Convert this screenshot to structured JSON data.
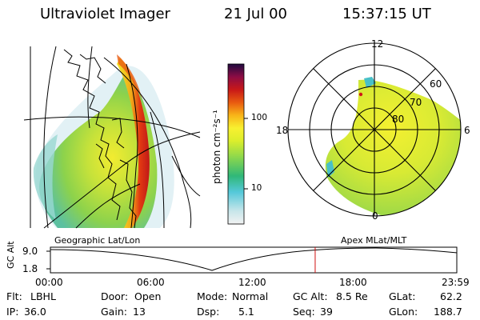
{
  "header": {
    "instrument": "Ultraviolet Imager",
    "date": "21 Jul 00",
    "time": "15:37:15 UT"
  },
  "left_panel": {
    "projection_label": "Geographic Lat/Lon"
  },
  "right_panel": {
    "projection_label": "Apex MLat/MLT",
    "mlt_labels": {
      "top": "12",
      "left": "18",
      "right": "6",
      "bottom": "0"
    },
    "lat_labels": [
      "60",
      "70",
      "80"
    ]
  },
  "colorbar": {
    "unit_label": "photon cm⁻²s⁻¹",
    "ticks": [
      "100",
      "10"
    ],
    "colors": [
      "#f2f2f2",
      "#c8e6ea",
      "#54c8d9",
      "#30b878",
      "#8ed84c",
      "#dcee2c",
      "#f8f030",
      "#f8b418",
      "#e85a10",
      "#c81818",
      "#8c0c44",
      "#200a40"
    ]
  },
  "timeline": {
    "y_axis_label": "GC Alt",
    "y_ticks": [
      "9.0",
      "1.8"
    ],
    "x_ticks": [
      "00:00",
      "06:00",
      "12:00",
      "18:00",
      "23:59"
    ],
    "current_time_fraction": 0.6515,
    "marker_color": "#d01010"
  },
  "info": {
    "flt_label": "Flt:",
    "flt_value": "LBHL",
    "ip_label": "IP:",
    "ip_value": "36.0",
    "door_label": "Door:",
    "door_value": "Open",
    "gain_label": "Gain:",
    "gain_value": "13",
    "mode_label": "Mode:",
    "mode_value": "Normal",
    "dsp_label": "Dsp:",
    "dsp_value": "5.1",
    "gcalt_label": "GC Alt:",
    "gcalt_value": "8.5 Re",
    "seq_label": "Seq:",
    "seq_value": "39",
    "glat_label": "GLat:",
    "glat_value": "62.2",
    "glon_label": "GLon:",
    "glon_value": "188.7"
  }
}
